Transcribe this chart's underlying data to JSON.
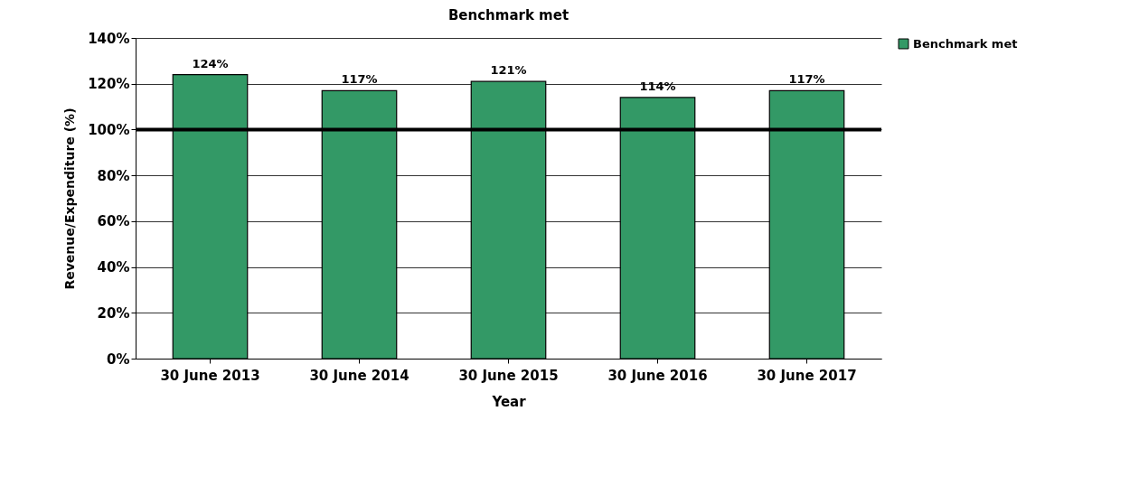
{
  "chart_data": {
    "type": "bar",
    "title": "Benchmark met",
    "xlabel": "Year",
    "ylabel": "Revenue/Expenditure (%)",
    "categories": [
      "30 June 2013",
      "30 June 2014",
      "30 June 2015",
      "30 June 2016",
      "30 June 2017"
    ],
    "series": [
      {
        "name": "Benchmark met",
        "color": "#339966",
        "values": [
          124,
          117,
          121,
          114,
          117
        ],
        "value_labels": [
          "124%",
          "117%",
          "121%",
          "114%",
          "117%"
        ]
      }
    ],
    "ylim": [
      0,
      140
    ],
    "yticks": [
      {
        "value": 0,
        "label": "0%"
      },
      {
        "value": 20,
        "label": "20%"
      },
      {
        "value": 40,
        "label": "40%"
      },
      {
        "value": 60,
        "label": "60%"
      },
      {
        "value": 80,
        "label": "80%"
      },
      {
        "value": 100,
        "label": "100%"
      },
      {
        "value": 120,
        "label": "120%"
      },
      {
        "value": 140,
        "label": "140%"
      }
    ],
    "ref_lines": [
      {
        "axis": "y",
        "value": 100,
        "color": "#000000"
      }
    ],
    "grid": "y",
    "legend": "right"
  }
}
